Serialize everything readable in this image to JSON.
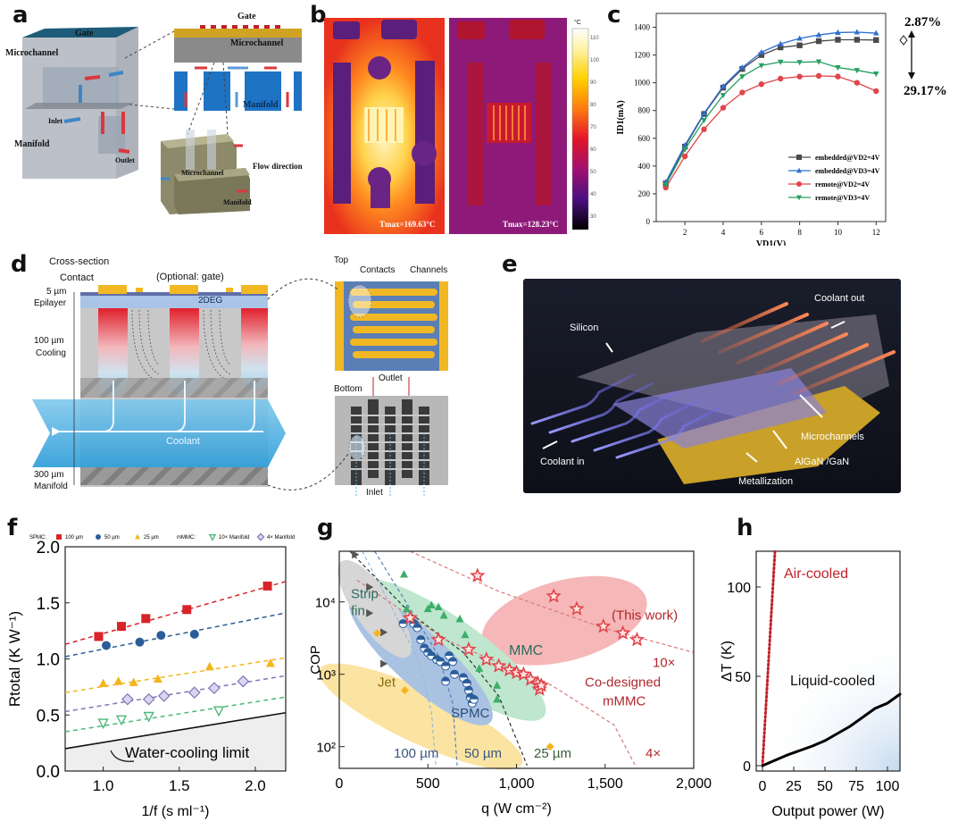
{
  "panels": {
    "a": {
      "label": "a",
      "block_labels": {
        "gate": "Gate",
        "microchannel": "Microchannel",
        "inlet": "Inlet",
        "outlet": "Outlet",
        "manifold": "Manifold"
      },
      "section_labels": {
        "gate": "Gate",
        "microchannel": "Microchannel",
        "manifold": "Manifold"
      },
      "detail_labels": {
        "flow_direction": "Flow direction",
        "microchannel": "Microchannel",
        "manifold": "Manifold"
      }
    },
    "b": {
      "label": "b",
      "left_tmax": "Tmax=169.63°C",
      "right_tmax": "Tmax=128.23°C",
      "colorbar_unit": "°C",
      "colorbar_ticks": [
        "110",
        "100",
        "90",
        "80",
        "70",
        "60",
        "50",
        "40",
        "30"
      ]
    },
    "d": {
      "label": "d",
      "cross_section": "Cross-section",
      "contact": "Contact",
      "optional_gate": "(Optional: gate)",
      "twodeg": "2DEG",
      "epilayer_thickness": "5 µm",
      "epilayer": "Epilayer",
      "cooling_thickness": "100 µm",
      "cooling": "Cooling",
      "manifold_thickness": "300 µm",
      "manifold": "Manifold",
      "coolant": "Coolant",
      "top": "Top",
      "contacts": "Contacts",
      "channels": "Channels",
      "outlet": "Outlet",
      "bottom": "Bottom",
      "inlet": "Inlet"
    },
    "e": {
      "label": "e",
      "silicon": "Silicon",
      "coolant_out": "Coolant out",
      "coolant_in": "Coolant in",
      "microchannels": "Microchannels",
      "algan": "AlGaN /GaN",
      "metallization": "Metallization"
    }
  },
  "chart_data": [
    {
      "id": "c",
      "panel_label": "c",
      "type": "line",
      "title": "",
      "xlabel": "V_D1(V)",
      "ylabel": "I_D1(mA)",
      "xlim": [
        0.5,
        12.5
      ],
      "ylim": [
        0,
        1500
      ],
      "xticks": [
        2,
        4,
        6,
        8,
        10,
        12
      ],
      "yticks": [
        0,
        200,
        400,
        600,
        800,
        1000,
        1200,
        1400
      ],
      "legend_position": "bottom-right",
      "x": [
        1,
        2,
        3,
        4,
        5,
        6,
        7,
        8,
        9,
        10,
        11,
        12
      ],
      "series": [
        {
          "name": "embedded@V_D2=4V",
          "marker": "square",
          "color": "#4a4a4a",
          "values": [
            275,
            540,
            775,
            965,
            1100,
            1200,
            1255,
            1270,
            1300,
            1310,
            1310,
            1308
          ]
        },
        {
          "name": "embedded@V_D3=4V",
          "marker": "triangle-up",
          "color": "#2f6fd1",
          "values": [
            285,
            550,
            780,
            975,
            1110,
            1220,
            1280,
            1320,
            1345,
            1362,
            1365,
            1358
          ]
        },
        {
          "name": "remote@V_D2=4V",
          "marker": "circle",
          "color": "#e0464b",
          "values": [
            245,
            470,
            665,
            820,
            930,
            990,
            1030,
            1045,
            1050,
            1045,
            1000,
            940
          ]
        },
        {
          "name": "remote@V_D3=4V",
          "marker": "triangle-down",
          "color": "#27a060",
          "values": [
            265,
            520,
            730,
            910,
            1045,
            1125,
            1150,
            1148,
            1152,
            1110,
            1090,
            1065
          ]
        }
      ],
      "annotations": [
        "2.87%",
        "29.17%"
      ]
    },
    {
      "id": "f",
      "panel_label": "f",
      "type": "scatter",
      "xlabel": "1/f (s ml⁻¹)",
      "ylabel": "R_total (K W⁻¹)",
      "xlim": [
        0.75,
        2.2
      ],
      "ylim": [
        0,
        2.0
      ],
      "xticks": [
        "1.0",
        "1.5",
        "2.0"
      ],
      "yticks": [
        "0.0",
        "0.5",
        "1.0",
        "1.5",
        "2.0"
      ],
      "legend_position": "top",
      "legend_groups": {
        "spmc": "SPMC:",
        "mmmc": "mMMC:"
      },
      "series": [
        {
          "name": "100 µm",
          "group": "SPMC",
          "marker": "square",
          "color": "#d9232a",
          "x": [
            0.97,
            1.12,
            1.28,
            1.55,
            2.08
          ],
          "y": [
            1.2,
            1.29,
            1.36,
            1.44,
            1.65
          ],
          "fit": [
            [
              0.75,
              1.13
            ],
            [
              2.2,
              1.69
            ]
          ]
        },
        {
          "name": "50 µm",
          "group": "SPMC",
          "marker": "circle",
          "color": "#2b5d9b",
          "x": [
            1.02,
            1.24,
            1.38,
            1.6
          ],
          "y": [
            1.12,
            1.15,
            1.21,
            1.22
          ],
          "fit": [
            [
              0.75,
              1.02
            ],
            [
              2.2,
              1.41
            ]
          ]
        },
        {
          "name": "25 µm",
          "group": "SPMC",
          "marker": "triangle-up",
          "color": "#f2b51c",
          "x": [
            1.0,
            1.1,
            1.2,
            1.36,
            1.7,
            2.1
          ],
          "y": [
            0.78,
            0.8,
            0.79,
            0.82,
            0.93,
            0.96
          ],
          "fit": [
            [
              0.75,
              0.7
            ],
            [
              2.2,
              1.01
            ]
          ]
        },
        {
          "name": "10× Manifold",
          "group": "mMMC",
          "marker": "triangle-down-open",
          "color": "#4cb87a",
          "x": [
            1.0,
            1.12,
            1.3,
            1.76
          ],
          "y": [
            0.43,
            0.46,
            0.49,
            0.54
          ],
          "fit": [
            [
              0.75,
              0.35
            ],
            [
              2.2,
              0.66
            ]
          ]
        },
        {
          "name": "4× Manifold",
          "group": "mMMC",
          "marker": "diamond-open",
          "color": "#7d77b8",
          "x": [
            1.16,
            1.3,
            1.4,
            1.6,
            1.73,
            1.92
          ],
          "y": [
            0.64,
            0.64,
            0.67,
            0.7,
            0.74,
            0.8
          ],
          "fit": [
            [
              0.75,
              0.53
            ],
            [
              2.2,
              0.85
            ]
          ]
        }
      ],
      "limit_line": {
        "name": "Water-cooling limit",
        "points": [
          [
            0.75,
            0.2
          ],
          [
            2.2,
            0.52
          ]
        ]
      }
    },
    {
      "id": "g",
      "panel_label": "g",
      "type": "scatter",
      "xlabel": "q (W cm⁻²)",
      "ylabel": "COP",
      "xlim": [
        0,
        2000
      ],
      "ylim_log10": [
        1.7,
        4.7
      ],
      "xticks": [
        "0",
        "500",
        "1,000",
        "1,500",
        "2,000"
      ],
      "yticks": [
        "10²",
        "10³",
        "10⁴"
      ],
      "region_labels": [
        "Strip fin",
        "Jet",
        "SPMC",
        "MMC",
        "(This work)",
        "10×",
        "Co-designed mMMC"
      ],
      "curve_labels": [
        "100 µm",
        "50 µm",
        "25 µm",
        "4×"
      ],
      "series": [
        {
          "name": "Strip fin",
          "marker": "triangle-right",
          "color": "#555555",
          "x": [
            90,
            170,
            170,
            250,
            250
          ],
          "y": [
            45000,
            16000,
            7000,
            3800,
            1400
          ]
        },
        {
          "name": "Jet",
          "marker": "diamond",
          "color": "#f2b51c",
          "x": [
            215,
            370,
            1190
          ],
          "y": [
            3700,
            600,
            100
          ]
        },
        {
          "name": "SPMC",
          "marker": "circle-half",
          "color": "#2b5d9b",
          "x": [
            360,
            420,
            440,
            460,
            480,
            500,
            520,
            550,
            570,
            600,
            620,
            640,
            600,
            700,
            720,
            730,
            740,
            750,
            760,
            650
          ],
          "y": [
            5000,
            5000,
            4400,
            3000,
            2300,
            2000,
            1800,
            1600,
            1500,
            1300,
            1800,
            1500,
            800,
            900,
            750,
            600,
            480,
            400,
            450,
            1000
          ]
        },
        {
          "name": "MMC",
          "marker": "triangle-up",
          "color": "#3cae6b",
          "x": [
            365,
            380,
            500,
            520,
            560,
            590,
            680,
            710,
            790,
            890,
            890
          ],
          "y": [
            24000,
            8000,
            8000,
            9000,
            8500,
            6500,
            5800,
            3500,
            1200,
            700,
            450
          ]
        },
        {
          "name": "Co-designed mMMC",
          "marker": "star-open",
          "color": "#e0464b",
          "x": [
            400,
            560,
            730,
            780,
            830,
            900,
            960,
            1000,
            1040,
            1080,
            1120,
            1130,
            1140,
            1210,
            1340,
            1490,
            1600,
            1680
          ],
          "y": [
            6000,
            3000,
            2200,
            23000,
            1600,
            1300,
            1150,
            1050,
            1000,
            850,
            750,
            620,
            700,
            12000,
            8000,
            4600,
            3700,
            3000
          ]
        }
      ]
    },
    {
      "id": "h",
      "panel_label": "h",
      "type": "line",
      "xlabel": "Output power (W)",
      "ylabel": "ΔT (K)",
      "xlim": [
        -5,
        110
      ],
      "ylim": [
        -3,
        120
      ],
      "xticks": [
        "0",
        "25",
        "50",
        "75",
        "100"
      ],
      "yticks": [
        "0",
        "50",
        "100"
      ],
      "series": [
        {
          "name": "Air-cooled",
          "style": "dotted",
          "color": "#c0212b",
          "x": [
            0,
            10
          ],
          "y": [
            0,
            122
          ]
        },
        {
          "name": "Liquid-cooled",
          "style": "solid",
          "color": "#000000",
          "x": [
            0,
            10,
            20,
            30,
            40,
            50,
            60,
            70,
            80,
            90,
            100,
            110
          ],
          "y": [
            0,
            3,
            6,
            8.5,
            11,
            14,
            18,
            22,
            27,
            32,
            35,
            40
          ]
        }
      ]
    }
  ]
}
